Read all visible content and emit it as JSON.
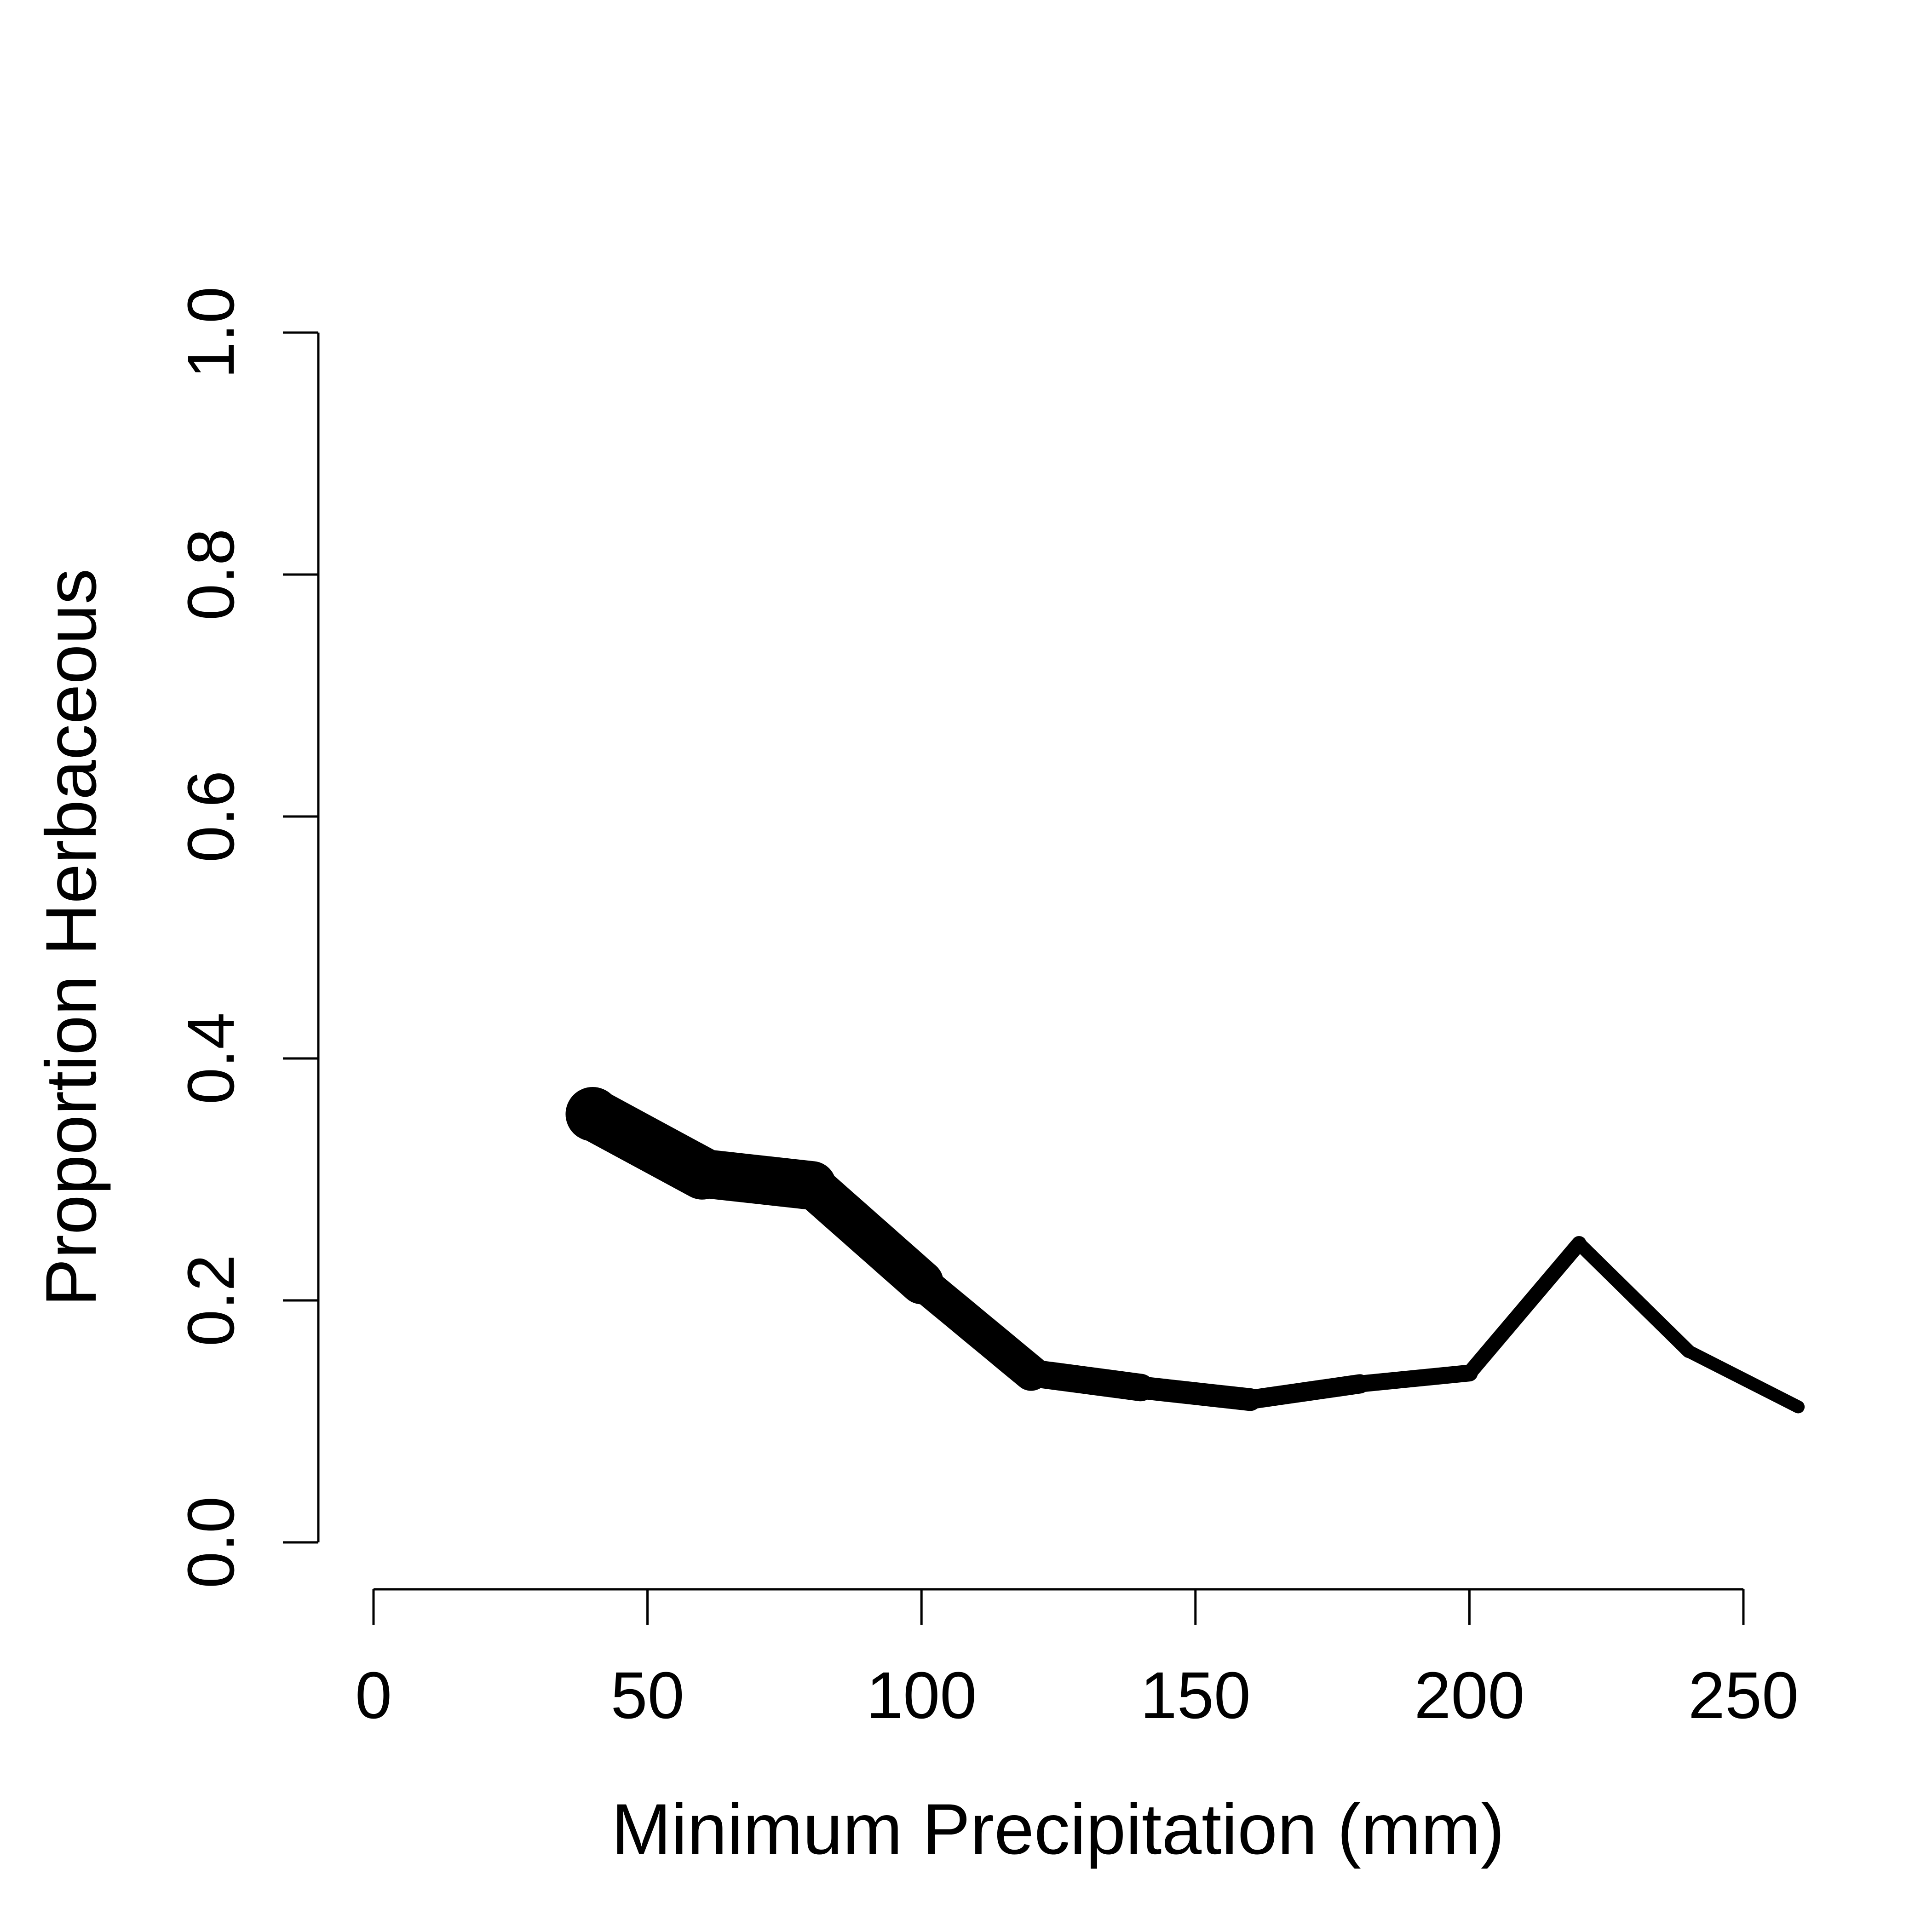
{
  "chart_data": {
    "type": "line",
    "title": "",
    "xlabel": "Minimum Precipitation (mm)",
    "ylabel": "Proportion Herbaceous",
    "xlim": [
      0,
      260
    ],
    "ylim": [
      0,
      1
    ],
    "x_ticks": [
      0,
      50,
      100,
      150,
      200,
      250
    ],
    "y_ticks": [
      0.0,
      0.2,
      0.4,
      0.6,
      0.8,
      1.0
    ],
    "x_tick_labels": [
      "0",
      "50",
      "100",
      "150",
      "200",
      "250"
    ],
    "y_tick_labels": [
      "0.0",
      "0.2",
      "0.4",
      "0.6",
      "0.8",
      "1.0"
    ],
    "grid": false,
    "legend": "none",
    "line_color": "#000000",
    "series": [
      {
        "x": [
          40,
          60,
          80,
          100,
          120,
          140,
          160,
          180,
          200,
          220,
          240,
          260
        ],
        "y": [
          0.354,
          0.305,
          0.295,
          0.215,
          0.14,
          0.128,
          0.118,
          0.131,
          0.14,
          0.247,
          0.158,
          0.112
        ],
        "weights": [
          1.0,
          0.92,
          0.85,
          0.72,
          0.5,
          0.38,
          0.3,
          0.24,
          0.2,
          0.16,
          0.14,
          0.13
        ]
      }
    ]
  }
}
